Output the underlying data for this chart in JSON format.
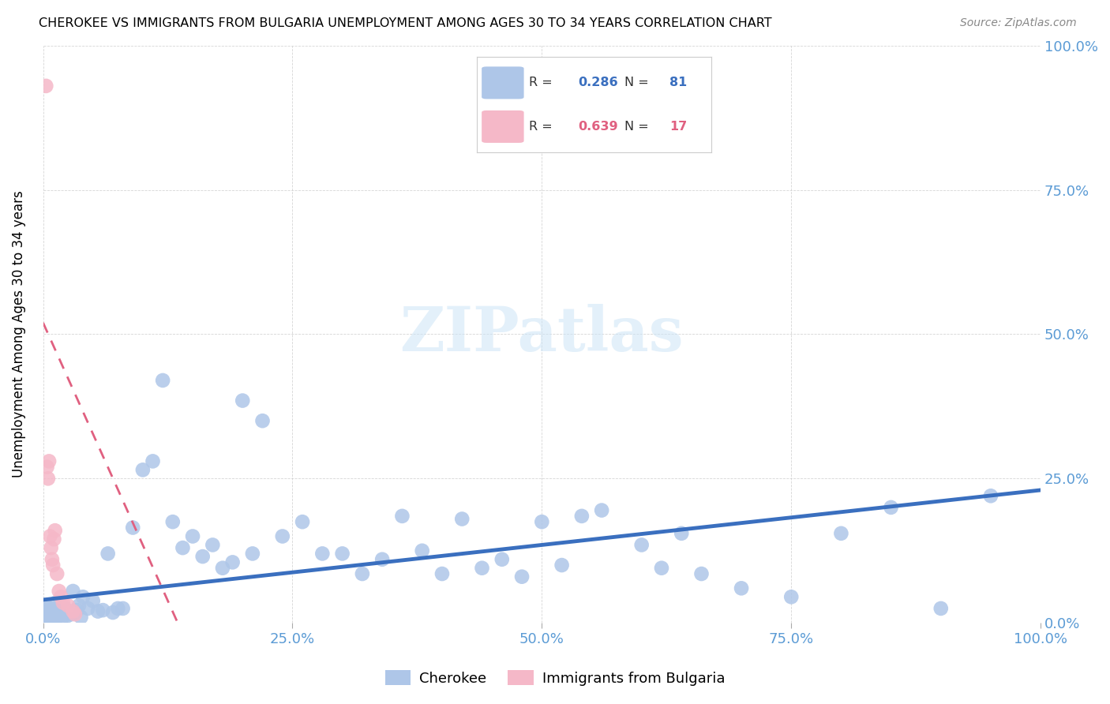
{
  "title": "CHEROKEE VS IMMIGRANTS FROM BULGARIA UNEMPLOYMENT AMONG AGES 30 TO 34 YEARS CORRELATION CHART",
  "source": "Source: ZipAtlas.com",
  "ylabel": "Unemployment Among Ages 30 to 34 years",
  "xlim": [
    0,
    1
  ],
  "ylim": [
    0,
    1
  ],
  "xticks": [
    0.0,
    0.25,
    0.5,
    0.75,
    1.0
  ],
  "yticks": [
    0.0,
    0.25,
    0.5,
    0.75,
    1.0
  ],
  "xticklabels": [
    "0.0%",
    "25.0%",
    "50.0%",
    "75.0%",
    "100.0%"
  ],
  "yticklabels": [
    "0.0%",
    "25.0%",
    "50.0%",
    "75.0%",
    "100.0%"
  ],
  "cherokee_R": "0.286",
  "cherokee_N": "81",
  "bulgaria_R": "0.639",
  "bulgaria_N": "17",
  "cherokee_color": "#aec6e8",
  "cherokee_line_color": "#3a6fbf",
  "bulgaria_color": "#f5b8c8",
  "bulgaria_line_color": "#e06080",
  "legend_box_color": "#f0f0f0",
  "tick_color": "#5b9bd5",
  "cherokee_x": [
    0.003,
    0.004,
    0.005,
    0.006,
    0.007,
    0.008,
    0.009,
    0.01,
    0.011,
    0.012,
    0.013,
    0.014,
    0.015,
    0.016,
    0.017,
    0.018,
    0.019,
    0.02,
    0.022,
    0.024,
    0.026,
    0.028,
    0.03,
    0.032,
    0.034,
    0.036,
    0.038,
    0.04,
    0.045,
    0.05,
    0.055,
    0.06,
    0.065,
    0.07,
    0.075,
    0.08,
    0.09,
    0.1,
    0.11,
    0.12,
    0.13,
    0.14,
    0.15,
    0.16,
    0.17,
    0.18,
    0.19,
    0.2,
    0.21,
    0.22,
    0.24,
    0.26,
    0.28,
    0.3,
    0.32,
    0.34,
    0.36,
    0.38,
    0.4,
    0.42,
    0.44,
    0.46,
    0.48,
    0.5,
    0.52,
    0.54,
    0.56,
    0.6,
    0.62,
    0.64,
    0.66,
    0.7,
    0.75,
    0.8,
    0.85,
    0.9,
    0.95,
    0.003,
    0.005,
    0.008,
    0.01
  ],
  "cherokee_y": [
    0.03,
    0.02,
    0.025,
    0.015,
    0.01,
    0.018,
    0.012,
    0.022,
    0.008,
    0.016,
    0.035,
    0.01,
    0.028,
    0.012,
    0.02,
    0.015,
    0.008,
    0.018,
    0.025,
    0.012,
    0.02,
    0.015,
    0.055,
    0.018,
    0.022,
    0.03,
    0.01,
    0.045,
    0.025,
    0.038,
    0.02,
    0.022,
    0.12,
    0.018,
    0.025,
    0.025,
    0.165,
    0.265,
    0.28,
    0.42,
    0.175,
    0.13,
    0.15,
    0.115,
    0.135,
    0.095,
    0.105,
    0.385,
    0.12,
    0.35,
    0.15,
    0.175,
    0.12,
    0.12,
    0.085,
    0.11,
    0.185,
    0.125,
    0.085,
    0.18,
    0.095,
    0.11,
    0.08,
    0.175,
    0.1,
    0.185,
    0.195,
    0.135,
    0.095,
    0.155,
    0.085,
    0.06,
    0.045,
    0.155,
    0.2,
    0.025,
    0.22,
    0.005,
    0.003,
    0.002,
    0.001
  ],
  "bulgaria_x": [
    0.003,
    0.004,
    0.005,
    0.006,
    0.007,
    0.008,
    0.009,
    0.01,
    0.011,
    0.012,
    0.014,
    0.016,
    0.018,
    0.02,
    0.025,
    0.03,
    0.032
  ],
  "bulgaria_y": [
    0.93,
    0.27,
    0.25,
    0.28,
    0.15,
    0.13,
    0.11,
    0.1,
    0.145,
    0.16,
    0.085,
    0.055,
    0.045,
    0.035,
    0.03,
    0.02,
    0.015
  ],
  "cherokee_trendline_x": [
    0.0,
    1.0
  ],
  "cherokee_trendline_y": [
    0.04,
    0.23
  ],
  "bulgaria_trendline_x": [
    0.0,
    0.135
  ],
  "bulgaria_trendline_y": [
    0.52,
    0.0
  ]
}
